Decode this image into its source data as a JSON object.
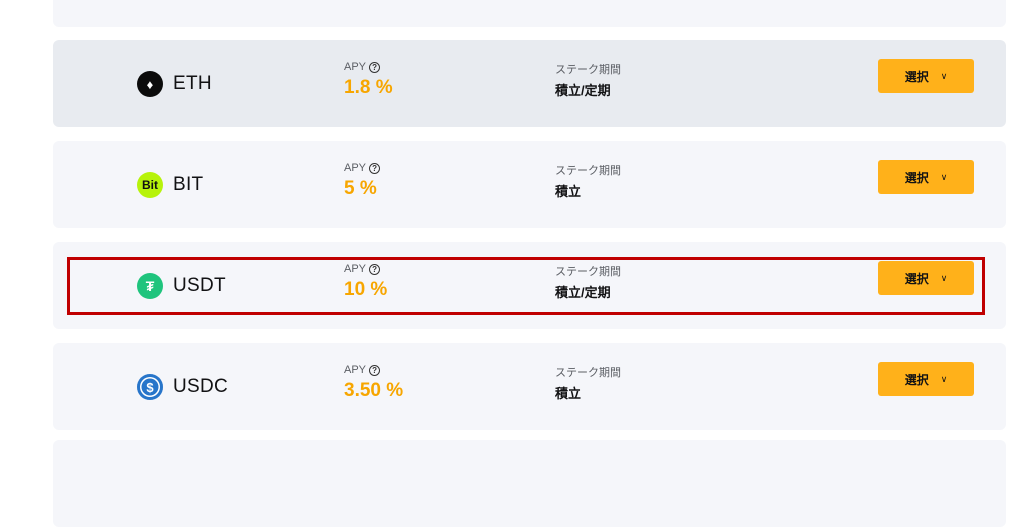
{
  "labels": {
    "apy": "APY",
    "stake_period": "ステーク期間",
    "select": "選択",
    "help": "?"
  },
  "colors": {
    "accent": "#f7a600",
    "button": "#ffb11a",
    "highlight": "#c00000"
  },
  "coins": [
    {
      "symbol": "ETH",
      "apy": "1.8 %",
      "period": "積立/定期",
      "icon": "eth-icon"
    },
    {
      "symbol": "BIT",
      "apy": "5 %",
      "period": "積立",
      "icon": "bit-icon",
      "icon_text": "Bit"
    },
    {
      "symbol": "USDT",
      "apy": "10 %",
      "period": "積立/定期",
      "icon": "usdt-icon",
      "icon_text": "₮"
    },
    {
      "symbol": "USDC",
      "apy": "3.50 %",
      "period": "積立",
      "icon": "usdc-icon",
      "icon_text": "$"
    }
  ]
}
